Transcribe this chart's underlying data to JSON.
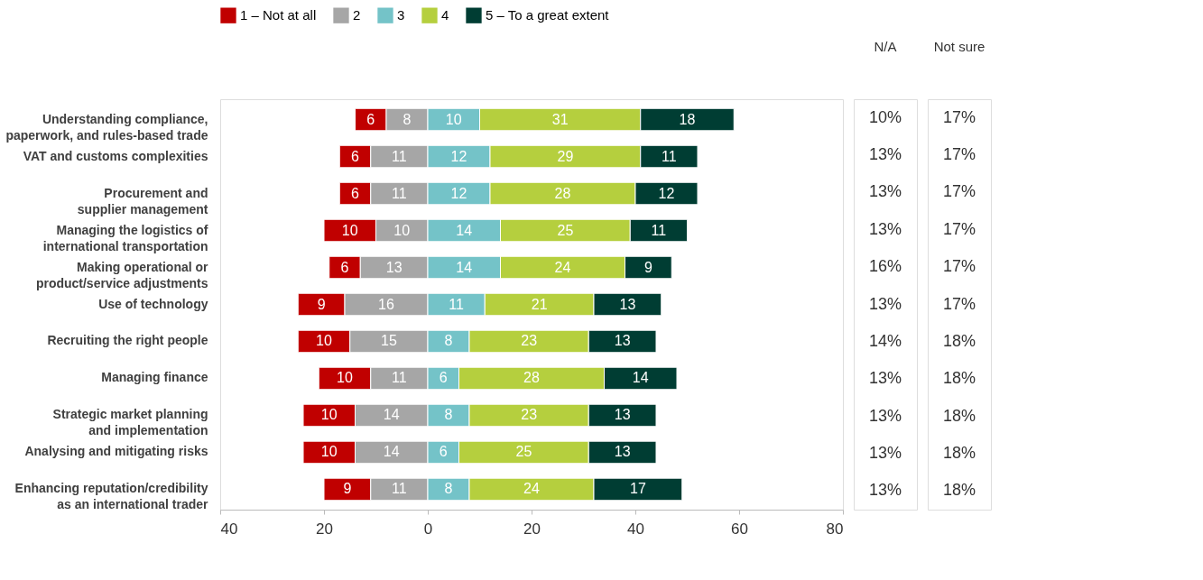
{
  "chart_data": [
    {
      "type": "bar",
      "orientation": "horizontal",
      "legend": "top",
      "categories": [
        "Understanding compliance,\npaperwork, and rules-based trade",
        "VAT and customs complexities",
        "Procurement and\nsupplier management",
        "Managing the logistics of\ninternational transportation",
        "Making operational or\nproduct/service adjustments",
        "Use of technology",
        "Recruiting the right people",
        "Managing finance",
        "Strategic market planning\nand implementation",
        "Analysing and mitigating risks",
        "Enhancing reputation/credibility\nas an international trader"
      ],
      "series": [
        {
          "name": "1 – Not at all",
          "color": "#c00000",
          "values": [
            6,
            6,
            6,
            10,
            6,
            9,
            10,
            10,
            10,
            10,
            9
          ],
          "base": [
            -14,
            -17,
            -17,
            -20,
            -19,
            -25,
            -25,
            -21,
            -24,
            -24,
            -20
          ]
        },
        {
          "name": "2",
          "color": "#a6a6a6",
          "values": [
            8,
            11,
            11,
            10,
            13,
            16,
            15,
            11,
            14,
            14,
            11
          ],
          "base": [
            -8,
            -11,
            -11,
            -10,
            -13,
            -16,
            -15,
            -11,
            -14,
            -14,
            -11
          ]
        },
        {
          "name": "3",
          "color": "#74c3c8",
          "values": [
            10,
            12,
            12,
            14,
            14,
            11,
            8,
            6,
            8,
            6,
            8
          ],
          "base": [
            0,
            0,
            0,
            0,
            0,
            0,
            0,
            0,
            0,
            0,
            0
          ]
        },
        {
          "name": "4",
          "color": "#b5cf3e",
          "values": [
            31,
            29,
            28,
            25,
            24,
            21,
            23,
            28,
            23,
            25,
            24
          ],
          "base": [
            10,
            12,
            12,
            14,
            14,
            11,
            8,
            6,
            8,
            6,
            8
          ]
        },
        {
          "name": "5 – To a great extent",
          "color": "#003d33",
          "values": [
            18,
            11,
            12,
            11,
            9,
            13,
            13,
            14,
            13,
            13,
            17
          ],
          "base": [
            41,
            41,
            40,
            39,
            38,
            32,
            31,
            34,
            31,
            31,
            32
          ]
        }
      ],
      "data_labels": true,
      "xlim": [
        -40,
        80
      ],
      "xticks": [
        {
          "value": -40,
          "label": "40"
        },
        {
          "value": -20,
          "label": "20"
        },
        0,
        20,
        40,
        60,
        80
      ],
      "grid": false
    },
    {
      "type": "other",
      "title": "N/A",
      "annotations": [
        "10%",
        "13%",
        "13%",
        "13%",
        "16%",
        "13%",
        "14%",
        "13%",
        "13%",
        "13%",
        "13%"
      ]
    },
    {
      "type": "other",
      "title": "Not sure",
      "annotations": [
        "17%",
        "17%",
        "17%",
        "17%",
        "17%",
        "17%",
        "18%",
        "18%",
        "18%",
        "18%",
        "18%"
      ]
    }
  ]
}
